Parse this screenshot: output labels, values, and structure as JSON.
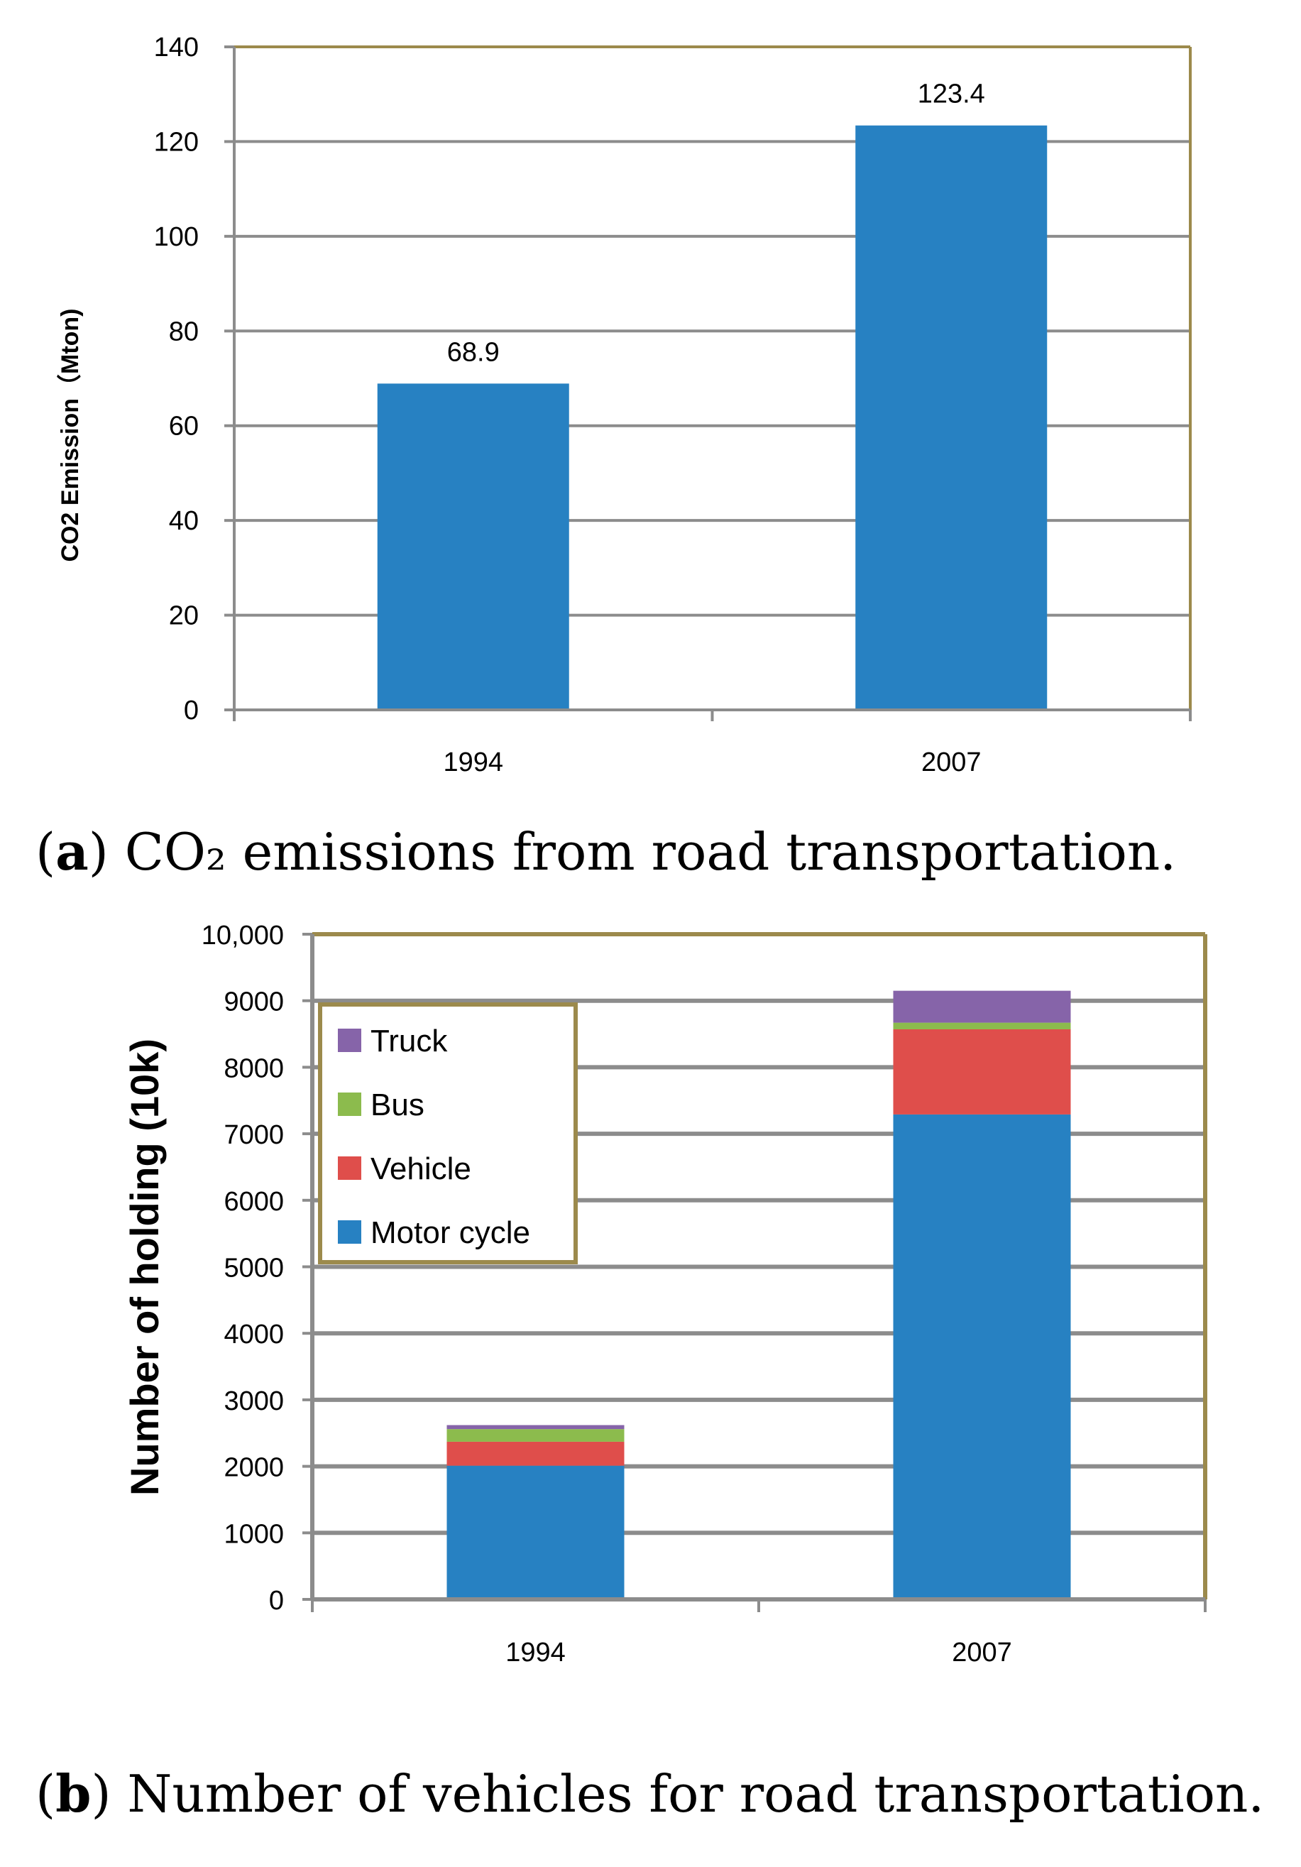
{
  "chart_data": [
    {
      "type": "bar",
      "caption": {
        "letter": "a",
        "text": "CO₂ emissions from road transportation."
      },
      "categories": [
        "1994",
        "2007"
      ],
      "series": [
        {
          "values": [
            68.9,
            123.4
          ]
        }
      ],
      "data_labels": [
        "68.9",
        "123.4"
      ],
      "ylabel": "CO2 Emission（Mton)",
      "xlabel": "",
      "ylim": [
        0,
        140
      ],
      "yticks": [
        "0",
        "20",
        "40",
        "60",
        "80",
        "100",
        "120",
        "140"
      ],
      "grid": true,
      "colors": {
        "bar": "#2781C2",
        "grid": "#8C8C8C",
        "frame": "#9C8A4C"
      }
    },
    {
      "type": "bar",
      "stacked": true,
      "caption": {
        "letter": "b",
        "text": "Number of vehicles for road transportation."
      },
      "categories": [
        "1994",
        "2007"
      ],
      "series": [
        {
          "name": "Motor cycle",
          "values": [
            2010,
            7290
          ],
          "color": "#2781C2"
        },
        {
          "name": "Vehicle",
          "values": [
            360,
            1280
          ],
          "color": "#DF4E4B"
        },
        {
          "name": "Bus",
          "values": [
            190,
            100
          ],
          "color": "#8CBB4D"
        },
        {
          "name": "Truck",
          "values": [
            60,
            480
          ],
          "color": "#8664A9"
        }
      ],
      "legend_order": [
        "Truck",
        "Bus",
        "Vehicle",
        "Motor cycle"
      ],
      "legend_position": "top-left",
      "ylabel": "Number of holding (10k)",
      "xlabel": "",
      "ylim": [
        0,
        10000
      ],
      "yticks": [
        "0",
        "1000",
        "2000",
        "3000",
        "4000",
        "5000",
        "6000",
        "7000",
        "8000",
        "9000",
        "10,000"
      ],
      "grid": true,
      "colors": {
        "grid": "#8C8C8C",
        "frame": "#9C8A4C"
      }
    }
  ]
}
